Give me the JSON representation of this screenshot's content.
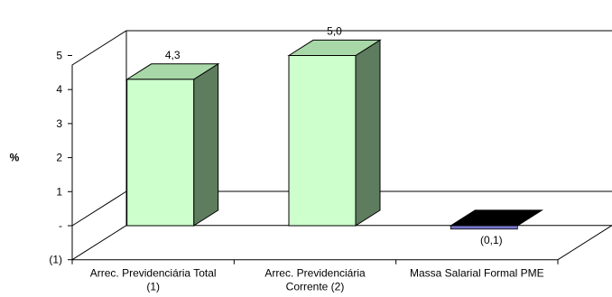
{
  "chart_data": {
    "type": "bar",
    "style": "3d-column",
    "ylabel": "%",
    "ylim": [
      -1,
      5
    ],
    "ytick_labels": [
      "(1)",
      "-",
      "1",
      "2",
      "3",
      "4",
      "5"
    ],
    "categories": [
      [
        "Arrec. Previdenciária Total",
        "(1)"
      ],
      [
        "Arrec. Previdenciária",
        "Corrente (2)"
      ],
      [
        "Massa Salarial Formal PME"
      ]
    ],
    "values": [
      4.3,
      5.0,
      -0.1
    ],
    "data_labels": [
      "4,3",
      "5,0",
      "(0,1)"
    ],
    "grid": false,
    "legend": "none",
    "colors": {
      "bar_front": "#ccffcc",
      "bar_top": "#a8d8a8",
      "bar_side": "#5e7c5e",
      "negative_bar": "#000000",
      "negative_edge": "#7777cc",
      "axis": "#000000"
    }
  }
}
